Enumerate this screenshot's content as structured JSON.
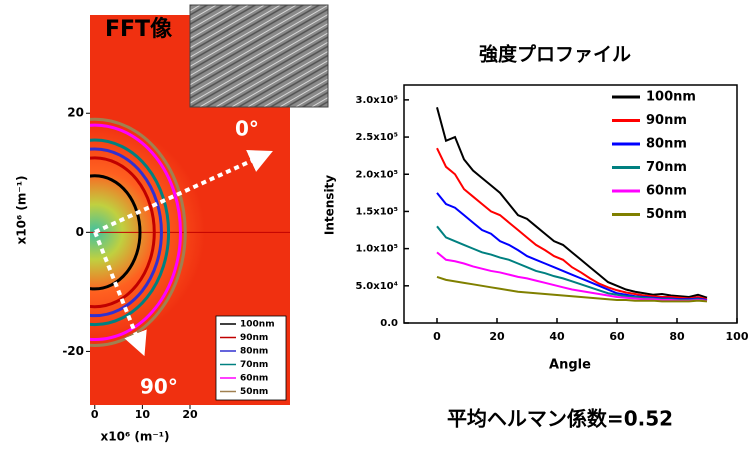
{
  "chart_data": [
    {
      "type": "rings",
      "title": "FFT像",
      "xlabel": "x10⁶ (m⁻¹)",
      "ylabel": "x10⁶ (m⁻¹)",
      "xlim": [
        -1,
        41
      ],
      "ylim": [
        -29,
        36.5
      ],
      "xticks": [
        0,
        10,
        20
      ],
      "yticks": [
        -20,
        0,
        20
      ],
      "annotations": [
        "0°",
        "90°"
      ],
      "series": [
        {
          "name": "100nm",
          "color": "#000000",
          "values": [
            9.5
          ]
        },
        {
          "name": "90nm",
          "color": "#c00000",
          "values": [
            12.5
          ]
        },
        {
          "name": "80nm",
          "color": "#3030d0",
          "values": [
            14
          ]
        },
        {
          "name": "70nm",
          "color": "#008080",
          "values": [
            15.5
          ]
        },
        {
          "name": "60nm",
          "color": "#ff00ff",
          "values": [
            18
          ]
        },
        {
          "name": "50nm",
          "color": "#a08050",
          "values": [
            19
          ]
        }
      ]
    },
    {
      "type": "line",
      "title": "強度プロファイル",
      "xlabel": "Angle",
      "ylabel": "Intensity",
      "note": "平均ヘルマン係数=0.52",
      "xlim": [
        -11,
        100
      ],
      "ylim": [
        0,
        320000
      ],
      "xticks": [
        0,
        20,
        40,
        60,
        80,
        100
      ],
      "yticks": [
        {
          "value": 0,
          "label": "0.0"
        },
        {
          "value": 50000,
          "label": "5.0x10⁴"
        },
        {
          "value": 100000,
          "label": "1.0x10⁵"
        },
        {
          "value": 150000,
          "label": "1.5x10⁵"
        },
        {
          "value": 200000,
          "label": "2.0x10⁵"
        },
        {
          "value": 250000,
          "label": "2.5x10⁵"
        },
        {
          "value": 300000,
          "label": "3.0x10⁵"
        }
      ],
      "x": [
        0,
        3,
        6,
        9,
        12,
        15,
        18,
        21,
        24,
        27,
        30,
        33,
        36,
        39,
        42,
        45,
        48,
        51,
        54,
        57,
        60,
        63,
        66,
        69,
        72,
        75,
        78,
        81,
        84,
        87,
        90
      ],
      "series": [
        {
          "name": "100nm",
          "color": "#000000",
          "values": [
            290000,
            245000,
            250000,
            220000,
            205000,
            195000,
            185000,
            175000,
            160000,
            145000,
            140000,
            130000,
            120000,
            110000,
            105000,
            95000,
            85000,
            75000,
            65000,
            55000,
            50000,
            45000,
            42000,
            40000,
            38000,
            39000,
            37000,
            36000,
            35000,
            38000,
            34000
          ]
        },
        {
          "name": "90nm",
          "color": "#ff0000",
          "values": [
            235000,
            210000,
            200000,
            180000,
            170000,
            160000,
            150000,
            145000,
            135000,
            125000,
            115000,
            105000,
            98000,
            90000,
            85000,
            75000,
            68000,
            60000,
            53000,
            48000,
            44000,
            41000,
            39000,
            37000,
            36000,
            35000,
            35000,
            34000,
            33000,
            35000,
            32000
          ]
        },
        {
          "name": "80nm",
          "color": "#0000ff",
          "values": [
            175000,
            160000,
            155000,
            145000,
            135000,
            125000,
            120000,
            110000,
            105000,
            98000,
            90000,
            85000,
            80000,
            75000,
            70000,
            65000,
            60000,
            55000,
            50000,
            45000,
            40000,
            38000,
            36000,
            35000,
            34000,
            33000,
            33000,
            32000,
            32000,
            33000,
            31000
          ]
        },
        {
          "name": "70nm",
          "color": "#008080",
          "values": [
            130000,
            115000,
            110000,
            105000,
            100000,
            95000,
            92000,
            88000,
            85000,
            80000,
            75000,
            70000,
            67000,
            63000,
            60000,
            56000,
            52000,
            48000,
            44000,
            40000,
            38000,
            36000,
            35000,
            34000,
            33000,
            32000,
            32000,
            31000,
            31000,
            32000,
            30000
          ]
        },
        {
          "name": "60nm",
          "color": "#ff00ff",
          "values": [
            95000,
            85000,
            83000,
            80000,
            76000,
            73000,
            70000,
            68000,
            65000,
            62000,
            60000,
            57000,
            54000,
            51000,
            48000,
            45000,
            43000,
            41000,
            39000,
            37000,
            35000,
            34000,
            33000,
            32000,
            32000,
            31000,
            31000,
            30000,
            30000,
            31000,
            30000
          ]
        },
        {
          "name": "50nm",
          "color": "#808000",
          "values": [
            62000,
            58000,
            56000,
            54000,
            52000,
            50000,
            48000,
            46000,
            44000,
            42000,
            41000,
            40000,
            39000,
            38000,
            37000,
            36000,
            35000,
            34000,
            33000,
            32000,
            31000,
            31000,
            30000,
            30000,
            30000,
            29000,
            29000,
            29000,
            29000,
            30000,
            29000
          ]
        }
      ]
    }
  ]
}
